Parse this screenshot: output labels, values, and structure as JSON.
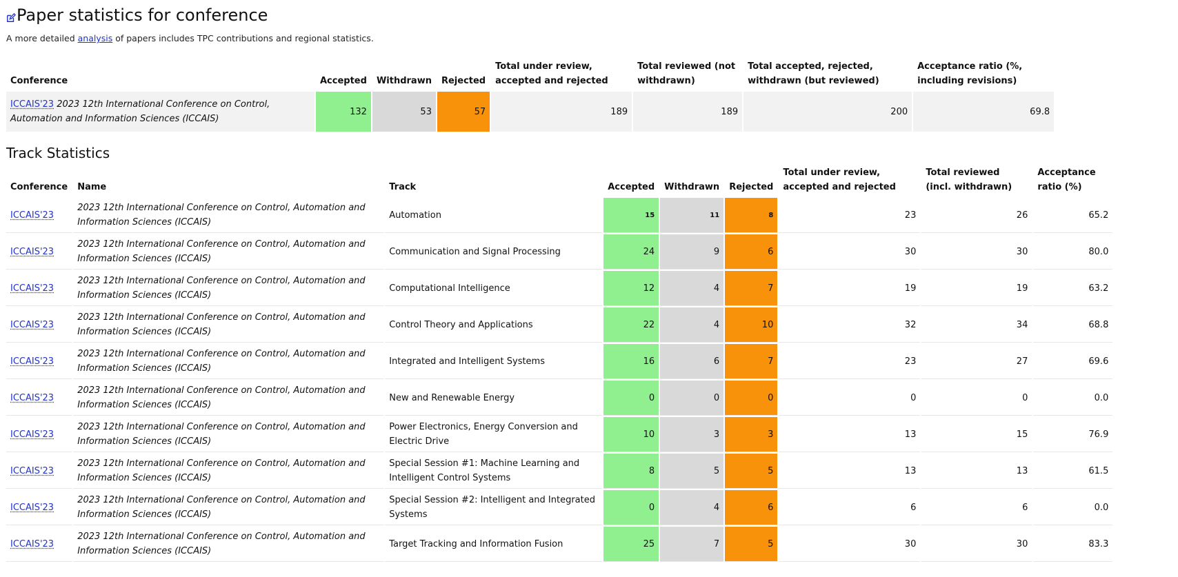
{
  "page": {
    "title": "Paper statistics for conference",
    "intro_before": "A more detailed ",
    "intro_link": "analysis",
    "intro_after": " of papers includes TPC contributions and regional statistics."
  },
  "summary": {
    "headers": {
      "conference": "Conference",
      "accepted": "Accepted",
      "withdrawn": "Withdrawn",
      "rejected": "Rejected",
      "total_under_review": "Total under review, accepted and rejected",
      "total_reviewed": "Total reviewed (not withdrawn)",
      "total_accepted_rejected_withdrawn": "Total accepted, rejected, withdrawn (but reviewed)",
      "acceptance_ratio": "Acceptance ratio (%, including revisions)"
    },
    "row": {
      "acronym": "ICCAIS'23",
      "name": "2023 12th International Conference on Control, Automation and Information Sciences (ICCAIS)",
      "accepted": "132",
      "withdrawn": "53",
      "rejected": "57",
      "total_under_review": "189",
      "total_reviewed": "189",
      "total_arw": "200",
      "ratio": "69.8"
    }
  },
  "tracks": {
    "title": "Track Statistics",
    "headers": {
      "conference": "Conference",
      "name": "Name",
      "track": "Track",
      "accepted": "Accepted",
      "withdrawn": "Withdrawn",
      "rejected": "Rejected",
      "total_under_review": "Total under review, accepted and rejected",
      "total_reviewed": "Total reviewed (incl. withdrawn)",
      "acceptance_ratio": "Acceptance ratio (%)"
    },
    "rows": [
      {
        "conf": "ICCAIS'23",
        "name": "2023 12th International Conference on Control, Automation and Information Sciences (ICCAIS)",
        "track": "Automation",
        "accepted": "15",
        "withdrawn": "11",
        "rejected": "8",
        "total": "23",
        "reviewed": "26",
        "ratio": "65.2"
      },
      {
        "conf": "ICCAIS'23",
        "name": "2023 12th International Conference on Control, Automation and Information Sciences (ICCAIS)",
        "track": "Communication and Signal Processing",
        "accepted": "24",
        "withdrawn": "9",
        "rejected": "6",
        "total": "30",
        "reviewed": "30",
        "ratio": "80.0"
      },
      {
        "conf": "ICCAIS'23",
        "name": "2023 12th International Conference on Control, Automation and Information Sciences (ICCAIS)",
        "track": "Computational Intelligence",
        "accepted": "12",
        "withdrawn": "4",
        "rejected": "7",
        "total": "19",
        "reviewed": "19",
        "ratio": "63.2"
      },
      {
        "conf": "ICCAIS'23",
        "name": "2023 12th International Conference on Control, Automation and Information Sciences (ICCAIS)",
        "track": "Control Theory and Applications",
        "accepted": "22",
        "withdrawn": "4",
        "rejected": "10",
        "total": "32",
        "reviewed": "34",
        "ratio": "68.8"
      },
      {
        "conf": "ICCAIS'23",
        "name": "2023 12th International Conference on Control, Automation and Information Sciences (ICCAIS)",
        "track": "Integrated and Intelligent Systems",
        "accepted": "16",
        "withdrawn": "6",
        "rejected": "7",
        "total": "23",
        "reviewed": "27",
        "ratio": "69.6"
      },
      {
        "conf": "ICCAIS'23",
        "name": "2023 12th International Conference on Control, Automation and Information Sciences (ICCAIS)",
        "track": "New and Renewable Energy",
        "accepted": "0",
        "withdrawn": "0",
        "rejected": "0",
        "total": "0",
        "reviewed": "0",
        "ratio": "0.0"
      },
      {
        "conf": "ICCAIS'23",
        "name": "2023 12th International Conference on Control, Automation and Information Sciences (ICCAIS)",
        "track": "Power Electronics, Energy Conversion and Electric Drive",
        "accepted": "10",
        "withdrawn": "3",
        "rejected": "3",
        "total": "13",
        "reviewed": "15",
        "ratio": "76.9"
      },
      {
        "conf": "ICCAIS'23",
        "name": "2023 12th International Conference on Control, Automation and Information Sciences (ICCAIS)",
        "track": "Special Session #1: Machine Learning and Intelligent Control Systems",
        "accepted": "8",
        "withdrawn": "5",
        "rejected": "5",
        "total": "13",
        "reviewed": "13",
        "ratio": "61.5"
      },
      {
        "conf": "ICCAIS'23",
        "name": "2023 12th International Conference on Control, Automation and Information Sciences (ICCAIS)",
        "track": "Special Session #2: Intelligent and Integrated Systems",
        "accepted": "0",
        "withdrawn": "4",
        "rejected": "6",
        "total": "6",
        "reviewed": "6",
        "ratio": "0.0"
      },
      {
        "conf": "ICCAIS'23",
        "name": "2023 12th International Conference on Control, Automation and Information Sciences (ICCAIS)",
        "track": "Target Tracking and Information Fusion",
        "accepted": "25",
        "withdrawn": "7",
        "rejected": "5",
        "total": "30",
        "reviewed": "30",
        "ratio": "83.3"
      }
    ]
  },
  "colors": {
    "accepted": "#90f090",
    "withdrawn": "#d9d9d9",
    "rejected": "#f7920a",
    "link": "#2233cc"
  }
}
